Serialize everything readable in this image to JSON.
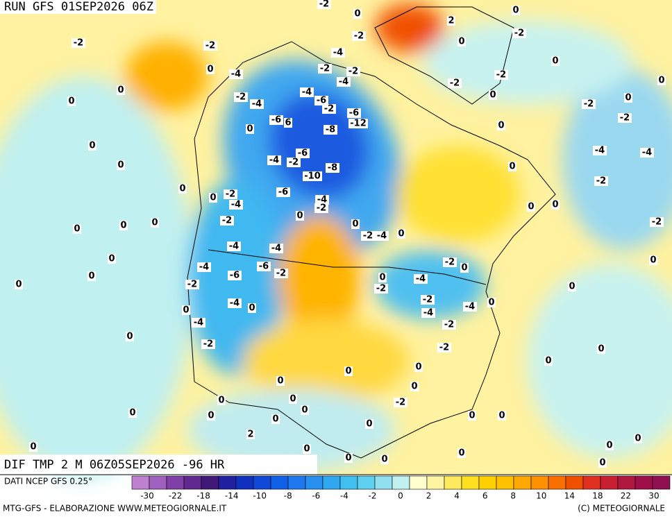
{
  "header": {
    "title": "RUN GFS 01SEP2026 06Z"
  },
  "map": {
    "caption": "DIF TMP 2 M 06Z05SEP2026 -96 HR",
    "labels": [
      -2,
      0,
      0,
      2,
      -2,
      -2,
      -2,
      -4,
      -2,
      0,
      0,
      0,
      -4,
      -2,
      -2,
      -4,
      -2,
      0,
      0,
      -4,
      -6,
      -2,
      0,
      0,
      -2,
      -4,
      -2,
      -6,
      -12,
      0,
      -2,
      -2,
      -6,
      6,
      -8,
      0,
      0,
      0,
      -6,
      -4,
      -4,
      -4,
      -2,
      -8,
      0,
      0,
      -10,
      -2,
      0,
      -2,
      -6,
      -4,
      -2,
      -4,
      0,
      0,
      0,
      0,
      -2,
      0,
      0,
      0,
      -2,
      0,
      -2,
      -4,
      0,
      -4,
      -4,
      0,
      -2,
      0,
      -4,
      -6,
      0,
      -6,
      -2,
      0,
      -2,
      0,
      0,
      -4,
      -2,
      0,
      -2,
      -4,
      0,
      -4,
      0,
      0,
      -4,
      -4,
      -2,
      0,
      -2,
      -2,
      0,
      0,
      0,
      0,
      0,
      0,
      0,
      0,
      -2,
      0,
      0,
      0,
      0,
      0,
      0,
      0,
      2,
      0,
      0,
      0,
      0,
      0,
      0,
      0,
      0
    ]
  },
  "colorbar": {
    "source": "DATI NCEP GFS 0.25°",
    "colors": [
      "#c080d0",
      "#a060c0",
      "#8040a8",
      "#602890",
      "#401878",
      "#2020a0",
      "#1030c0",
      "#1048d8",
      "#1060e8",
      "#2078f0",
      "#2890f0",
      "#30a8f0",
      "#40c0f0",
      "#60d0f0",
      "#90e0f0",
      "#c0f0f0",
      "#ffffd0",
      "#fff5a0",
      "#ffea60",
      "#ffe020",
      "#ffd000",
      "#ffc000",
      "#ffa800",
      "#ff9000",
      "#f87000",
      "#f05000",
      "#e03020",
      "#c82030",
      "#b01840",
      "#a01048",
      "#901050"
    ],
    "ticks": [
      -30,
      -22,
      -18,
      -14,
      -10,
      -8,
      -6,
      -4,
      -2,
      0,
      2,
      4,
      6,
      8,
      10,
      14,
      18,
      22,
      30
    ]
  },
  "footer": {
    "left": "MTG-GFS - ELABORAZIONE WWW.METEOGIORNALE.IT",
    "right": "(C) METEOGIORNALE"
  }
}
